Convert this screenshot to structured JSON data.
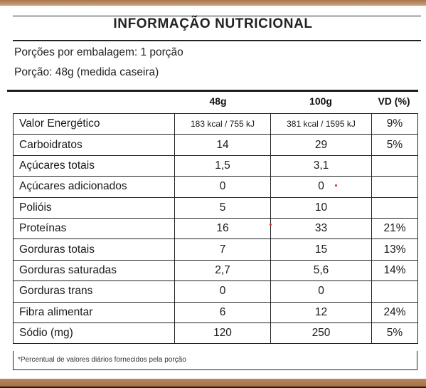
{
  "title": "INFORMAÇÃO NUTRICIONAL",
  "servings_per_package": "Porções por embalagem: 1 porção",
  "serving_size": "Porção: 48g  (medida caseira)",
  "columns": {
    "per_serving": "48g",
    "per_100g": "100g",
    "vd": "VD (%)"
  },
  "rows": [
    {
      "name": "Valor Energético",
      "per_serving": "183 kcal / 755 kJ",
      "per_100g": "381 kcal / 1595 kJ",
      "vd": "9%"
    },
    {
      "name": "Carboidratos",
      "per_serving": "14",
      "per_100g": "29",
      "vd": "5%"
    },
    {
      "name": "Açúcares totais",
      "per_serving": "1,5",
      "per_100g": "3,1",
      "vd": ""
    },
    {
      "name": "Açúcares adicionados",
      "per_serving": "0",
      "per_100g": "0",
      "vd": ""
    },
    {
      "name": "Polióis",
      "per_serving": "5",
      "per_100g": "10",
      "vd": ""
    },
    {
      "name": "Proteínas",
      "per_serving": "16",
      "per_100g": "33",
      "vd": "21%"
    },
    {
      "name": "Gorduras totais",
      "per_serving": "7",
      "per_100g": "15",
      "vd": "13%"
    },
    {
      "name": "Gorduras saturadas",
      "per_serving": "2,7",
      "per_100g": "5,6",
      "vd": "14%"
    },
    {
      "name": "Gorduras trans",
      "per_serving": "0",
      "per_100g": "0",
      "vd": ""
    },
    {
      "name": "Fibra alimentar",
      "per_serving": "6",
      "per_100g": "12",
      "vd": "24%"
    },
    {
      "name": "Sódio (mg)",
      "per_serving": "120",
      "per_100g": "250",
      "vd": "5%"
    }
  ],
  "footnote": "*Percentual de valores diários fornecidos pela porção",
  "colors": {
    "frame": "#a9764b",
    "ink": "#1a1a1a",
    "marker": "#e0201a"
  }
}
